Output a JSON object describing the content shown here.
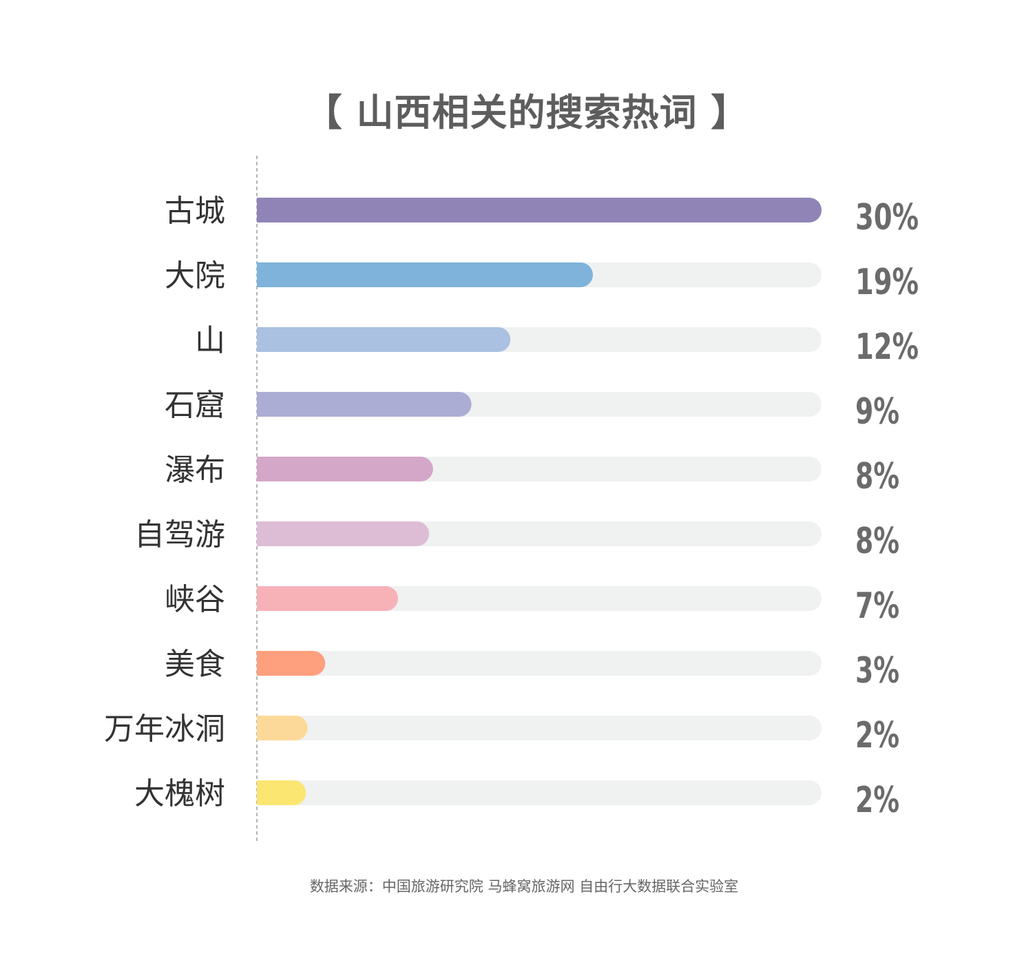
{
  "chart_data": {
    "type": "bar",
    "orientation": "horizontal",
    "title": "【 山西相关的搜索热词 】",
    "categories": [
      "古城",
      "大院",
      "山",
      "石窟",
      "瀑布",
      "自驾游",
      "峡谷",
      "美食",
      "万年冰洞",
      "大槐树"
    ],
    "values": [
      30,
      19,
      12,
      9,
      8,
      8,
      7,
      3,
      2,
      2
    ],
    "value_labels": [
      "30%",
      "19%",
      "12%",
      "9%",
      "8%",
      "8%",
      "7%",
      "3%",
      "2%",
      "2%"
    ],
    "relative_fill": [
      1.0,
      0.595,
      0.449,
      0.38,
      0.312,
      0.305,
      0.25,
      0.121,
      0.09,
      0.087
    ],
    "bar_colors": [
      "#8f84b5",
      "#7fb3db",
      "#abc1e1",
      "#abadd4",
      "#d4a7c9",
      "#ddbdd5",
      "#f7b2b8",
      "#fe9f7e",
      "#fdd999",
      "#fbe671"
    ],
    "track_color": "#f0f1f1",
    "axis_line": "dashed",
    "xlabel": "",
    "ylabel": "",
    "grid": false,
    "legend": "none",
    "source": "数据来源：中国旅游研究院 马蜂窝旅游网 自由行大数据联合实验室"
  }
}
